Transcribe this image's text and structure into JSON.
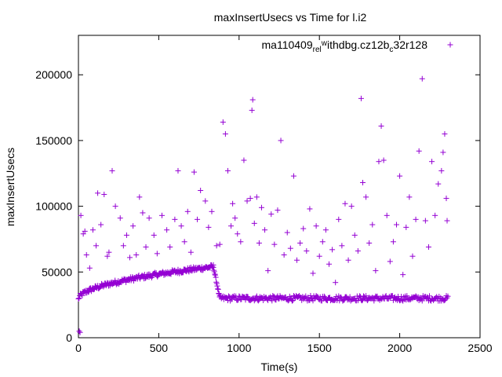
{
  "chart_data": {
    "type": "scatter",
    "title": "maxInsertUsecs vs Time for l.i2",
    "xlabel": "Time(s)",
    "ylabel": "maxInsertUsecs",
    "xlim": [
      0,
      2500
    ],
    "ylim": [
      0,
      230000
    ],
    "x_ticks": [
      0,
      500,
      1000,
      1500,
      2000,
      2500
    ],
    "y_ticks": [
      0,
      50000,
      100000,
      150000,
      200000
    ],
    "x_tick_labels": [
      "0",
      "500",
      "1000",
      "1500",
      "2000",
      "2500"
    ],
    "y_tick_labels": [
      "0",
      "50000",
      "100000",
      "150000",
      "200000"
    ],
    "grid": false,
    "legend_position": "top-right",
    "marker": "+",
    "series": [
      {
        "name": "ma110409_rel_withdbg.cz12b_c32r128",
        "name_parts": [
          "ma110409",
          "rel",
          "w",
          "ithdbg.cz12b",
          "c",
          "32r128"
        ],
        "color": "#9400d3",
        "trend": {
          "ramp": {
            "x_start": 0,
            "y_start": 29000,
            "x_end": 840,
            "y_end": 54000
          },
          "plateau": {
            "x_start": 840,
            "x_end": 2300,
            "y_min": 28000,
            "y_max": 32000
          },
          "transition": {
            "x_start": 840,
            "x_end": 880,
            "y_start": 54000,
            "y_end": 30000
          }
        },
        "outliers": [
          [
            5,
            5000
          ],
          [
            10,
            4000
          ],
          [
            15,
            93000
          ],
          [
            30,
            79000
          ],
          [
            40,
            81000
          ],
          [
            50,
            63000
          ],
          [
            70,
            53000
          ],
          [
            90,
            82000
          ],
          [
            110,
            70000
          ],
          [
            120,
            110000
          ],
          [
            140,
            86000
          ],
          [
            160,
            109000
          ],
          [
            180,
            62000
          ],
          [
            190,
            65000
          ],
          [
            210,
            127000
          ],
          [
            230,
            100000
          ],
          [
            260,
            91000
          ],
          [
            280,
            70000
          ],
          [
            300,
            78000
          ],
          [
            320,
            61000
          ],
          [
            340,
            85000
          ],
          [
            360,
            63000
          ],
          [
            380,
            107000
          ],
          [
            400,
            95000
          ],
          [
            420,
            69000
          ],
          [
            440,
            91000
          ],
          [
            470,
            78000
          ],
          [
            490,
            64000
          ],
          [
            520,
            93000
          ],
          [
            550,
            82000
          ],
          [
            570,
            69000
          ],
          [
            600,
            90000
          ],
          [
            620,
            127000
          ],
          [
            640,
            85000
          ],
          [
            660,
            73000
          ],
          [
            680,
            96000
          ],
          [
            700,
            65000
          ],
          [
            720,
            126000
          ],
          [
            740,
            90000
          ],
          [
            760,
            112000
          ],
          [
            790,
            104000
          ],
          [
            810,
            84000
          ],
          [
            830,
            96000
          ],
          [
            860,
            70000
          ],
          [
            880,
            71000
          ],
          [
            900,
            164000
          ],
          [
            915,
            155000
          ],
          [
            930,
            127000
          ],
          [
            950,
            85000
          ],
          [
            960,
            102000
          ],
          [
            975,
            91000
          ],
          [
            990,
            79000
          ],
          [
            1010,
            73000
          ],
          [
            1030,
            135000
          ],
          [
            1050,
            104000
          ],
          [
            1070,
            106000
          ],
          [
            1085,
            181000
          ],
          [
            1080,
            173000
          ],
          [
            1095,
            87000
          ],
          [
            1110,
            107000
          ],
          [
            1125,
            72000
          ],
          [
            1140,
            99000
          ],
          [
            1160,
            82000
          ],
          [
            1180,
            51000
          ],
          [
            1200,
            94000
          ],
          [
            1220,
            71000
          ],
          [
            1240,
            97000
          ],
          [
            1260,
            150000
          ],
          [
            1280,
            63000
          ],
          [
            1300,
            80000
          ],
          [
            1320,
            68000
          ],
          [
            1340,
            123000
          ],
          [
            1360,
            59000
          ],
          [
            1380,
            72000
          ],
          [
            1400,
            83000
          ],
          [
            1420,
            66000
          ],
          [
            1440,
            98000
          ],
          [
            1460,
            49000
          ],
          [
            1480,
            85000
          ],
          [
            1500,
            62000
          ],
          [
            1520,
            73000
          ],
          [
            1540,
            82000
          ],
          [
            1560,
            56000
          ],
          [
            1580,
            67000
          ],
          [
            1600,
            42000
          ],
          [
            1620,
            90000
          ],
          [
            1640,
            70000
          ],
          [
            1660,
            102000
          ],
          [
            1680,
            59000
          ],
          [
            1700,
            100000
          ],
          [
            1720,
            78000
          ],
          [
            1740,
            66000
          ],
          [
            1760,
            182000
          ],
          [
            1770,
            118000
          ],
          [
            1790,
            107000
          ],
          [
            1810,
            72000
          ],
          [
            1830,
            86000
          ],
          [
            1850,
            51000
          ],
          [
            1870,
            134000
          ],
          [
            1885,
            161000
          ],
          [
            1900,
            135000
          ],
          [
            1920,
            93000
          ],
          [
            1940,
            58000
          ],
          [
            1960,
            73000
          ],
          [
            1980,
            86000
          ],
          [
            2000,
            123000
          ],
          [
            2020,
            48000
          ],
          [
            2040,
            84000
          ],
          [
            2060,
            107000
          ],
          [
            2080,
            62000
          ],
          [
            2100,
            90000
          ],
          [
            2120,
            142000
          ],
          [
            2140,
            197000
          ],
          [
            2160,
            89000
          ],
          [
            2180,
            69000
          ],
          [
            2200,
            134000
          ],
          [
            2220,
            93000
          ],
          [
            2240,
            117000
          ],
          [
            2260,
            127000
          ],
          [
            2270,
            141000
          ],
          [
            2280,
            155000
          ],
          [
            2290,
            106000
          ],
          [
            2295,
            89000
          ]
        ]
      }
    ]
  }
}
